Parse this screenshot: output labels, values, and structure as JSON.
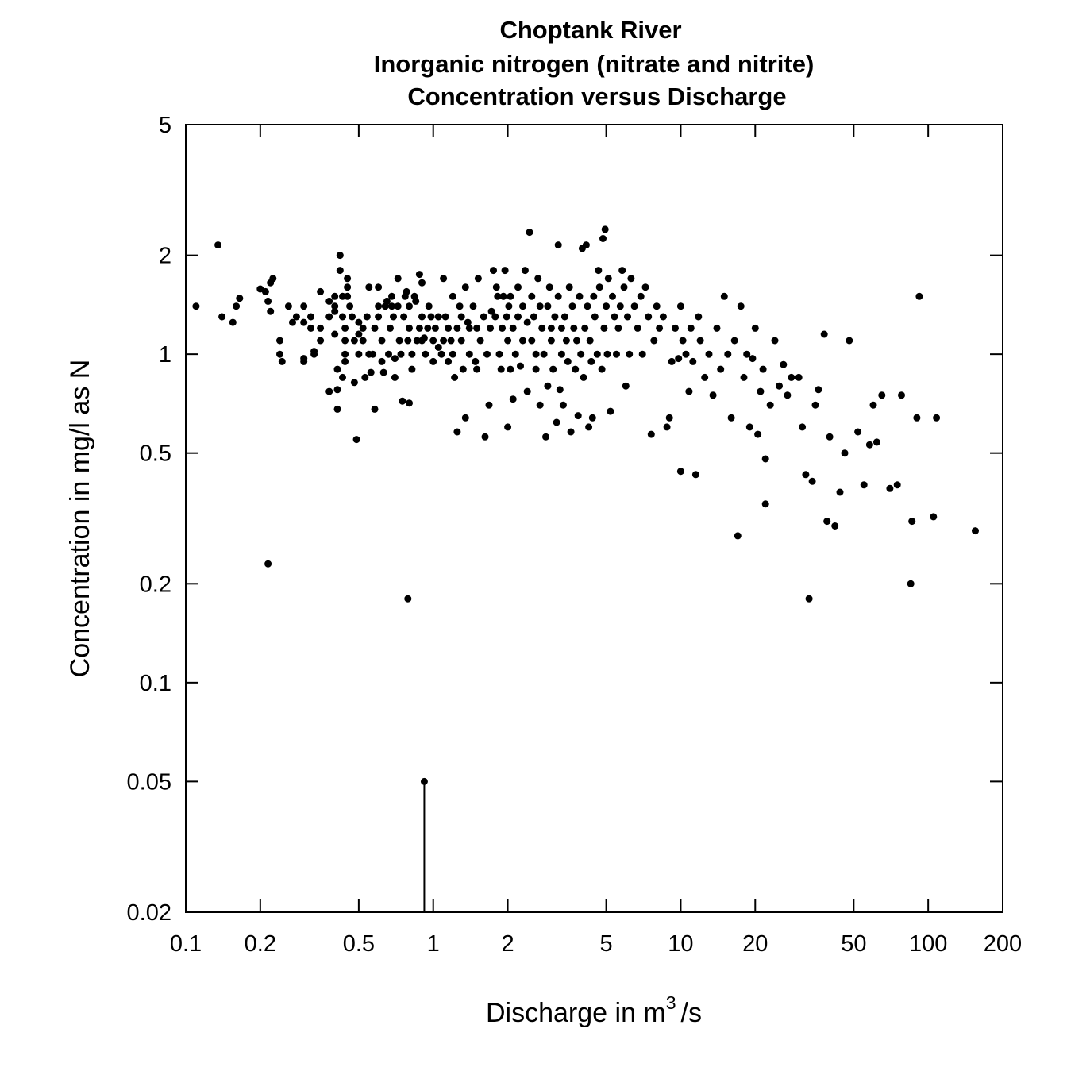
{
  "chart_data": {
    "type": "scatter",
    "title": [
      "Choptank River",
      "Inorganic nitrogen (nitrate and nitrite)",
      "Concentration versus Discharge"
    ],
    "xlabel": {
      "text": "Discharge in m",
      "superscript": "3",
      "suffix": "/s"
    },
    "ylabel": "Concentration in mg/l as N",
    "xscale": "log",
    "yscale": "log",
    "xlim": [
      0.1,
      200
    ],
    "ylim": [
      0.02,
      5
    ],
    "xticks": [
      {
        "value": 0.1,
        "label": "0.1"
      },
      {
        "value": 0.2,
        "label": "0.2"
      },
      {
        "value": 0.5,
        "label": "0.5"
      },
      {
        "value": 1,
        "label": "1"
      },
      {
        "value": 2,
        "label": "2"
      },
      {
        "value": 5,
        "label": "5"
      },
      {
        "value": 10,
        "label": "10"
      },
      {
        "value": 20,
        "label": "20"
      },
      {
        "value": 50,
        "label": "50"
      },
      {
        "value": 100,
        "label": "100"
      },
      {
        "value": 200,
        "label": "200"
      }
    ],
    "yticks": [
      {
        "value": 0.02,
        "label": "0.02"
      },
      {
        "value": 0.05,
        "label": "0.05"
      },
      {
        "value": 0.1,
        "label": "0.1"
      },
      {
        "value": 0.2,
        "label": "0.2"
      },
      {
        "value": 0.5,
        "label": "0.5"
      },
      {
        "value": 1,
        "label": "1"
      },
      {
        "value": 2,
        "label": "2"
      },
      {
        "value": 5,
        "label": "5"
      }
    ],
    "grid": false,
    "color": "#000000",
    "censored": [
      {
        "x": 0.92,
        "y": 0.05
      }
    ],
    "points": [
      [
        0.11,
        1.4
      ],
      [
        0.135,
        2.15
      ],
      [
        0.14,
        1.3
      ],
      [
        0.155,
        1.25
      ],
      [
        0.16,
        1.4
      ],
      [
        0.165,
        1.48
      ],
      [
        0.2,
        1.58
      ],
      [
        0.21,
        1.55
      ],
      [
        0.215,
        1.45
      ],
      [
        0.22,
        1.65
      ],
      [
        0.225,
        1.7
      ],
      [
        0.22,
        1.35
      ],
      [
        0.24,
        1.1
      ],
      [
        0.24,
        1.0
      ],
      [
        0.245,
        0.95
      ],
      [
        0.26,
        1.4
      ],
      [
        0.27,
        1.25
      ],
      [
        0.28,
        1.3
      ],
      [
        0.3,
        1.4
      ],
      [
        0.3,
        1.25
      ],
      [
        0.3,
        0.97
      ],
      [
        0.3,
        0.95
      ],
      [
        0.32,
        1.2
      ],
      [
        0.32,
        1.3
      ],
      [
        0.33,
        1.0
      ],
      [
        0.33,
        1.02
      ],
      [
        0.35,
        1.1
      ],
      [
        0.35,
        1.2
      ],
      [
        0.35,
        1.55
      ],
      [
        0.38,
        0.77
      ],
      [
        0.38,
        1.3
      ],
      [
        0.38,
        1.45
      ],
      [
        0.4,
        1.5
      ],
      [
        0.4,
        1.4
      ],
      [
        0.4,
        1.35
      ],
      [
        0.4,
        1.15
      ],
      [
        0.41,
        0.78
      ],
      [
        0.41,
        0.9
      ],
      [
        0.42,
        2.0
      ],
      [
        0.42,
        1.8
      ],
      [
        0.43,
        1.5
      ],
      [
        0.43,
        1.3
      ],
      [
        0.44,
        1.2
      ],
      [
        0.44,
        1.1
      ],
      [
        0.44,
        1.0
      ],
      [
        0.44,
        0.95
      ],
      [
        0.45,
        1.6
      ],
      [
        0.45,
        1.7
      ],
      [
        0.45,
        1.5
      ],
      [
        0.46,
        1.4
      ],
      [
        0.47,
        1.3
      ],
      [
        0.48,
        1.1
      ],
      [
        0.48,
        0.82
      ],
      [
        0.49,
        0.55
      ],
      [
        0.41,
        0.68
      ],
      [
        0.43,
        0.85
      ],
      [
        0.5,
        1.25
      ],
      [
        0.5,
        1.15
      ],
      [
        0.5,
        1.0
      ],
      [
        0.52,
        1.2
      ],
      [
        0.52,
        1.1
      ],
      [
        0.53,
        0.85
      ],
      [
        0.54,
        1.3
      ],
      [
        0.55,
        1.6
      ],
      [
        0.55,
        1.0
      ],
      [
        0.56,
        0.88
      ],
      [
        0.57,
        1.0
      ],
      [
        0.58,
        1.2
      ],
      [
        0.58,
        0.68
      ],
      [
        0.6,
        1.6
      ],
      [
        0.6,
        1.4
      ],
      [
        0.6,
        1.3
      ],
      [
        0.62,
        1.1
      ],
      [
        0.62,
        0.95
      ],
      [
        0.63,
        0.88
      ],
      [
        0.64,
        1.4
      ],
      [
        0.65,
        1.45
      ],
      [
        0.66,
        1.0
      ],
      [
        0.67,
        1.2
      ],
      [
        0.68,
        1.4
      ],
      [
        0.68,
        1.5
      ],
      [
        0.69,
        1.3
      ],
      [
        0.7,
        0.97
      ],
      [
        0.7,
        0.85
      ],
      [
        0.72,
        1.7
      ],
      [
        0.72,
        1.4
      ],
      [
        0.73,
        1.1
      ],
      [
        0.74,
        1.0
      ],
      [
        0.75,
        0.72
      ],
      [
        0.76,
        1.3
      ],
      [
        0.77,
        1.5
      ],
      [
        0.78,
        1.55
      ],
      [
        0.79,
        1.1
      ],
      [
        0.8,
        0.71
      ],
      [
        0.8,
        1.4
      ],
      [
        0.8,
        1.2
      ],
      [
        0.82,
        1.0
      ],
      [
        0.82,
        0.9
      ],
      [
        0.84,
        1.5
      ],
      [
        0.85,
        1.45
      ],
      [
        0.86,
        1.1
      ],
      [
        0.88,
        1.2
      ],
      [
        0.88,
        1.75
      ],
      [
        0.9,
        1.65
      ],
      [
        0.9,
        1.3
      ],
      [
        0.9,
        1.1
      ],
      [
        0.92,
        1.12
      ],
      [
        0.93,
        1.0
      ],
      [
        0.95,
        1.2
      ],
      [
        0.96,
        1.4
      ],
      [
        0.98,
        1.3
      ],
      [
        0.79,
        0.18
      ],
      [
        0.215,
        0.23
      ],
      [
        1.0,
        1.1
      ],
      [
        1.0,
        0.95
      ],
      [
        1.02,
        1.2
      ],
      [
        1.05,
        1.3
      ],
      [
        1.05,
        1.05
      ],
      [
        1.08,
        1.0
      ],
      [
        1.1,
        1.1
      ],
      [
        1.1,
        1.7
      ],
      [
        1.12,
        1.3
      ],
      [
        1.15,
        1.2
      ],
      [
        1.15,
        0.95
      ],
      [
        1.18,
        1.1
      ],
      [
        1.2,
        1.5
      ],
      [
        1.2,
        1.0
      ],
      [
        1.22,
        0.85
      ],
      [
        1.25,
        0.58
      ],
      [
        1.25,
        1.2
      ],
      [
        1.28,
        1.4
      ],
      [
        1.3,
        1.3
      ],
      [
        1.3,
        1.1
      ],
      [
        1.32,
        0.9
      ],
      [
        1.35,
        0.64
      ],
      [
        1.35,
        1.6
      ],
      [
        1.38,
        1.25
      ],
      [
        1.4,
        1.0
      ],
      [
        1.4,
        1.2
      ],
      [
        1.45,
        1.4
      ],
      [
        1.48,
        0.95
      ],
      [
        1.5,
        1.2
      ],
      [
        1.5,
        0.9
      ],
      [
        1.52,
        1.7
      ],
      [
        1.55,
        1.1
      ],
      [
        1.6,
        1.3
      ],
      [
        1.62,
        0.56
      ],
      [
        1.65,
        1.0
      ],
      [
        1.68,
        0.7
      ],
      [
        1.7,
        1.2
      ],
      [
        1.72,
        1.35
      ],
      [
        1.75,
        1.8
      ],
      [
        1.78,
        1.3
      ],
      [
        1.8,
        1.6
      ],
      [
        1.82,
        1.5
      ],
      [
        1.85,
        1.0
      ],
      [
        1.88,
        0.9
      ],
      [
        1.9,
        1.2
      ],
      [
        1.92,
        1.5
      ],
      [
        1.95,
        1.8
      ],
      [
        1.98,
        1.3
      ],
      [
        2.0,
        0.6
      ],
      [
        2.0,
        1.1
      ],
      [
        2.02,
        1.4
      ],
      [
        2.05,
        0.9
      ],
      [
        2.05,
        1.5
      ],
      [
        2.1,
        1.2
      ],
      [
        2.1,
        0.73
      ],
      [
        2.15,
        1.0
      ],
      [
        2.2,
        1.3
      ],
      [
        2.2,
        1.6
      ],
      [
        2.25,
        0.92
      ],
      [
        2.3,
        1.1
      ],
      [
        2.3,
        1.4
      ],
      [
        2.35,
        1.8
      ],
      [
        2.4,
        1.25
      ],
      [
        2.4,
        0.77
      ],
      [
        2.45,
        2.35
      ],
      [
        2.5,
        1.5
      ],
      [
        2.5,
        1.1
      ],
      [
        2.55,
        1.3
      ],
      [
        2.6,
        1.0
      ],
      [
        2.6,
        0.9
      ],
      [
        2.65,
        1.7
      ],
      [
        2.7,
        1.4
      ],
      [
        2.7,
        0.7
      ],
      [
        2.75,
        1.2
      ],
      [
        2.8,
        1.0
      ],
      [
        2.85,
        0.56
      ],
      [
        2.9,
        1.4
      ],
      [
        2.9,
        0.8
      ],
      [
        2.95,
        1.6
      ],
      [
        3.0,
        1.2
      ],
      [
        3.0,
        1.1
      ],
      [
        3.05,
        0.9
      ],
      [
        3.1,
        1.3
      ],
      [
        3.15,
        0.62
      ],
      [
        3.2,
        2.15
      ],
      [
        3.2,
        1.5
      ],
      [
        3.25,
        0.78
      ],
      [
        3.3,
        1.0
      ],
      [
        3.3,
        1.2
      ],
      [
        3.35,
        0.7
      ],
      [
        3.4,
        1.3
      ],
      [
        3.45,
        1.1
      ],
      [
        3.5,
        0.95
      ],
      [
        3.55,
        1.6
      ],
      [
        3.6,
        0.58
      ],
      [
        3.65,
        1.4
      ],
      [
        3.7,
        1.2
      ],
      [
        3.75,
        0.9
      ],
      [
        3.8,
        1.1
      ],
      [
        3.85,
        0.65
      ],
      [
        3.9,
        1.5
      ],
      [
        3.95,
        1.0
      ],
      [
        4.0,
        2.1
      ],
      [
        4.05,
        0.85
      ],
      [
        4.1,
        1.2
      ],
      [
        4.15,
        2.15
      ],
      [
        4.2,
        1.4
      ],
      [
        4.25,
        0.6
      ],
      [
        4.3,
        1.1
      ],
      [
        4.35,
        0.95
      ],
      [
        4.4,
        0.64
      ],
      [
        4.45,
        1.5
      ],
      [
        4.5,
        1.3
      ],
      [
        4.6,
        1.0
      ],
      [
        4.65,
        1.8
      ],
      [
        4.7,
        1.6
      ],
      [
        4.8,
        0.9
      ],
      [
        4.85,
        2.25
      ],
      [
        4.9,
        1.2
      ],
      [
        4.95,
        2.4
      ],
      [
        5.0,
        1.4
      ],
      [
        5.05,
        1.0
      ],
      [
        5.1,
        1.7
      ],
      [
        5.2,
        0.67
      ],
      [
        5.3,
        1.5
      ],
      [
        5.4,
        1.3
      ],
      [
        5.5,
        1.0
      ],
      [
        5.6,
        1.2
      ],
      [
        5.7,
        1.4
      ],
      [
        5.8,
        1.8
      ],
      [
        5.9,
        1.6
      ],
      [
        6.0,
        0.8
      ],
      [
        6.1,
        1.3
      ],
      [
        6.2,
        1.0
      ],
      [
        6.3,
        1.7
      ],
      [
        6.5,
        1.4
      ],
      [
        6.7,
        1.2
      ],
      [
        6.9,
        1.5
      ],
      [
        7.0,
        1.0
      ],
      [
        7.2,
        1.6
      ],
      [
        7.4,
        1.3
      ],
      [
        7.6,
        0.57
      ],
      [
        7.8,
        1.1
      ],
      [
        8.0,
        1.4
      ],
      [
        8.2,
        1.2
      ],
      [
        8.5,
        1.3
      ],
      [
        8.8,
        0.6
      ],
      [
        9.0,
        0.64
      ],
      [
        9.2,
        0.95
      ],
      [
        9.5,
        1.2
      ],
      [
        9.8,
        0.97
      ],
      [
        10.0,
        0.44
      ],
      [
        10.0,
        1.4
      ],
      [
        10.2,
        1.1
      ],
      [
        10.5,
        1.0
      ],
      [
        10.8,
        0.77
      ],
      [
        11.0,
        1.2
      ],
      [
        11.2,
        0.95
      ],
      [
        11.5,
        0.43
      ],
      [
        11.8,
        1.3
      ],
      [
        12.0,
        1.1
      ],
      [
        12.5,
        0.85
      ],
      [
        13.0,
        1.0
      ],
      [
        13.5,
        0.75
      ],
      [
        14.0,
        1.2
      ],
      [
        14.5,
        0.9
      ],
      [
        15.0,
        1.5
      ],
      [
        15.5,
        1.0
      ],
      [
        16.0,
        0.64
      ],
      [
        16.5,
        1.1
      ],
      [
        17.0,
        0.28
      ],
      [
        17.5,
        1.4
      ],
      [
        18.0,
        0.85
      ],
      [
        18.5,
        1.0
      ],
      [
        19.0,
        0.6
      ],
      [
        19.5,
        0.97
      ],
      [
        20.0,
        1.2
      ],
      [
        20.5,
        0.57
      ],
      [
        21.0,
        0.77
      ],
      [
        21.5,
        0.9
      ],
      [
        22.0,
        0.35
      ],
      [
        22.0,
        0.48
      ],
      [
        23.0,
        0.7
      ],
      [
        24.0,
        1.1
      ],
      [
        25.0,
        0.8
      ],
      [
        26.0,
        0.93
      ],
      [
        27.0,
        0.75
      ],
      [
        28.0,
        0.85
      ],
      [
        30.0,
        0.85
      ],
      [
        31.0,
        0.6
      ],
      [
        32.0,
        0.43
      ],
      [
        33.0,
        0.18
      ],
      [
        34.0,
        0.41
      ],
      [
        35.0,
        0.7
      ],
      [
        36.0,
        0.78
      ],
      [
        38.0,
        1.15
      ],
      [
        39.0,
        0.31
      ],
      [
        40.0,
        0.56
      ],
      [
        42.0,
        0.3
      ],
      [
        44.0,
        0.38
      ],
      [
        46.0,
        0.5
      ],
      [
        48.0,
        1.1
      ],
      [
        52.0,
        0.58
      ],
      [
        55.0,
        0.4
      ],
      [
        58.0,
        0.53
      ],
      [
        60.0,
        0.7
      ],
      [
        62.0,
        0.54
      ],
      [
        65.0,
        0.75
      ],
      [
        70.0,
        0.39
      ],
      [
        75.0,
        0.4
      ],
      [
        78.0,
        0.75
      ],
      [
        85.0,
        0.2
      ],
      [
        86.0,
        0.31
      ],
      [
        90.0,
        0.64
      ],
      [
        92.0,
        1.5
      ],
      [
        105.0,
        0.32
      ],
      [
        108.0,
        0.64
      ],
      [
        155.0,
        0.29
      ]
    ]
  }
}
